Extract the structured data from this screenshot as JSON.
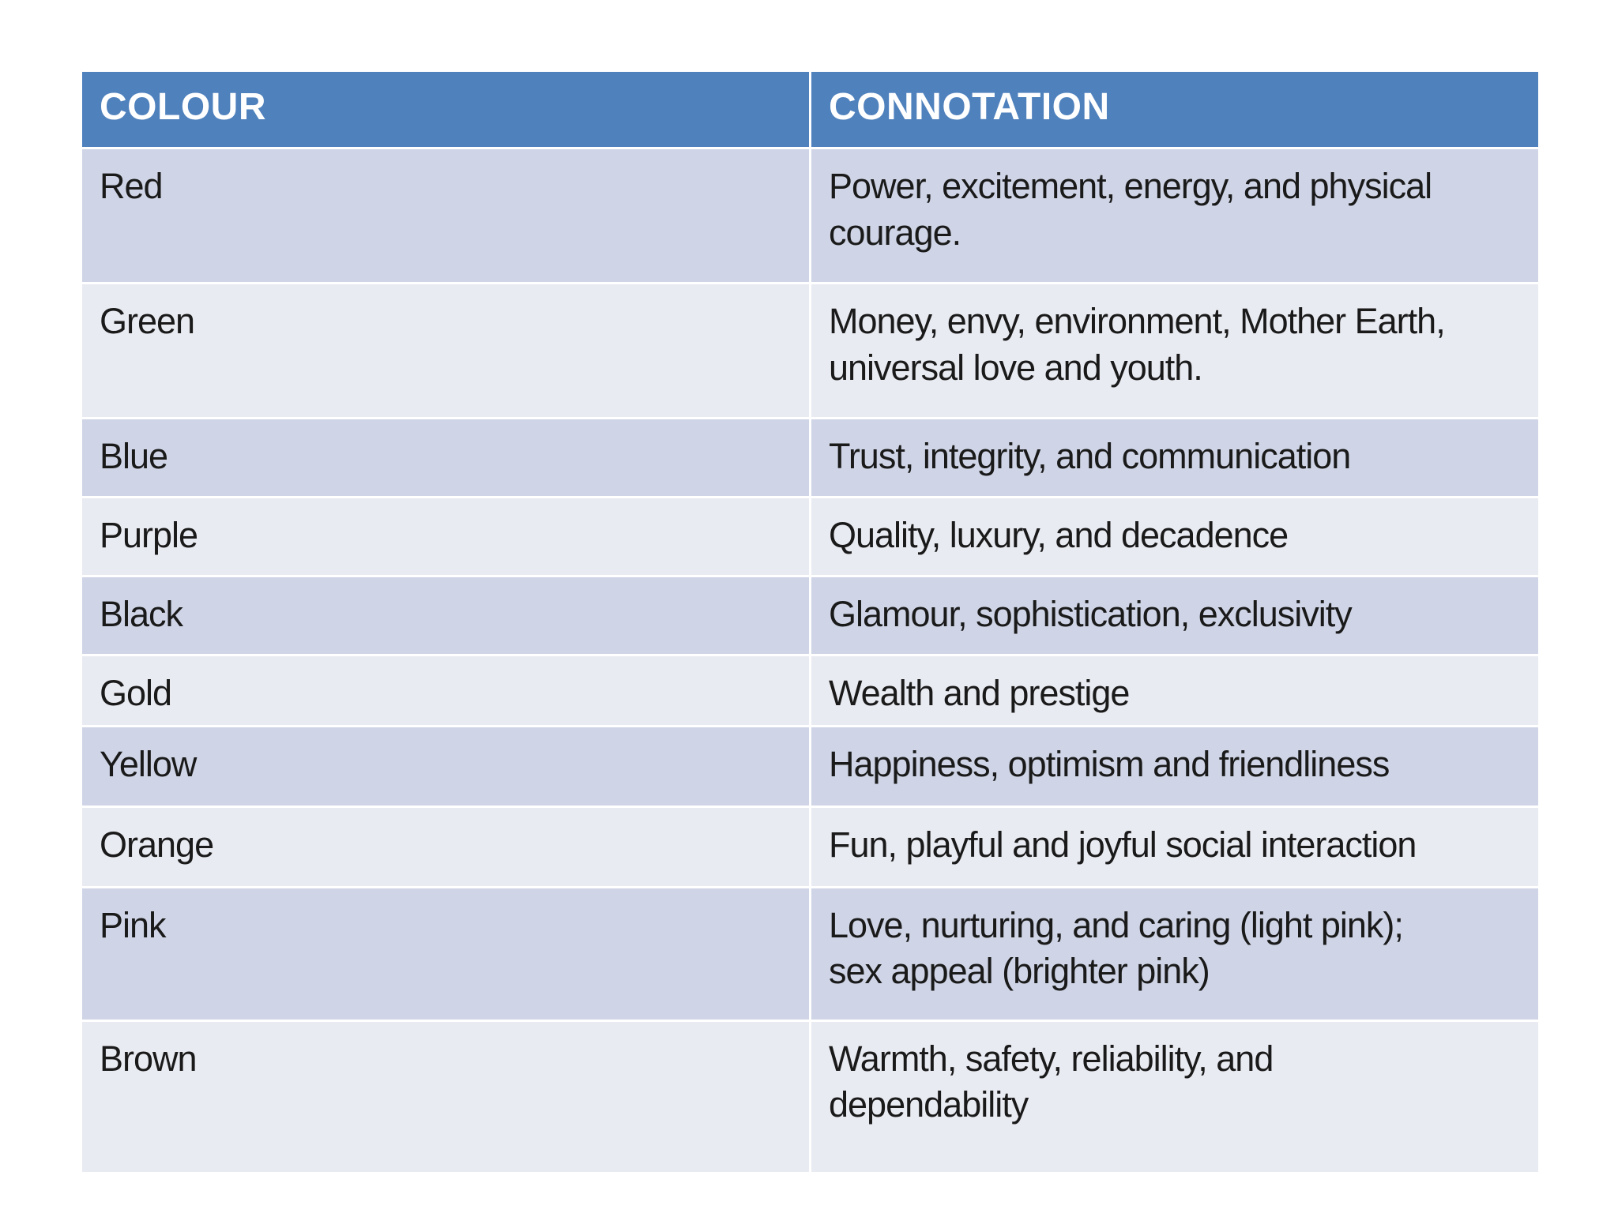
{
  "page": {
    "background_color": "#FFFFFF"
  },
  "table": {
    "title_semantic": "colour-connotation-table",
    "colors": {
      "header_bg": "#4F81BD",
      "header_text": "#FFFFFF",
      "band_dark": "#CFD5E6",
      "band_light": "#E9EBF2",
      "grid": "#FFFFFF",
      "body_text": "#1A1A1A"
    },
    "headers": {
      "colour": "COLOUR",
      "connotation": "CONNOTATION"
    },
    "rows": [
      {
        "colour": "Red",
        "connotation": "Power, excitement, energy, and physical\ncourage."
      },
      {
        "colour": "Green",
        "connotation": "Money, envy, environment, Mother Earth,\nuniversal love and youth."
      },
      {
        "colour": "Blue",
        "connotation": "Trust, integrity, and communication"
      },
      {
        "colour": "Purple",
        "connotation": "Quality, luxury, and decadence"
      },
      {
        "colour": "Black",
        "connotation": "Glamour, sophistication, exclusivity"
      },
      {
        "colour": "Gold",
        "connotation": "Wealth and prestige"
      },
      {
        "colour": "Yellow",
        "connotation": "Happiness, optimism and friendliness"
      },
      {
        "colour": "Orange",
        "connotation": "Fun, playful and joyful social interaction"
      },
      {
        "colour": "Pink",
        "connotation": "Love, nurturing, and caring (light pink);\nsex appeal (brighter pink)"
      },
      {
        "colour": "Brown",
        "connotation": "Warmth, safety, reliability, and\ndependability"
      }
    ]
  },
  "chart_data": {
    "type": "table",
    "columns": [
      "COLOUR",
      "CONNOTATION"
    ],
    "rows": [
      [
        "Red",
        "Power, excitement, energy, and physical courage."
      ],
      [
        "Green",
        "Money, envy, environment, Mother Earth, universal love and youth."
      ],
      [
        "Blue",
        "Trust, integrity, and communication"
      ],
      [
        "Purple",
        "Quality, luxury, and decadence"
      ],
      [
        "Black",
        "Glamour, sophistication, exclusivity"
      ],
      [
        "Gold",
        "Wealth and prestige"
      ],
      [
        "Yellow",
        "Happiness, optimism and friendliness"
      ],
      [
        "Orange",
        "Fun, playful and joyful social interaction"
      ],
      [
        "Pink",
        "Love, nurturing, and caring (light pink); sex appeal (brighter pink)"
      ],
      [
        "Brown",
        "Warmth, safety, reliability, and dependability"
      ]
    ]
  }
}
